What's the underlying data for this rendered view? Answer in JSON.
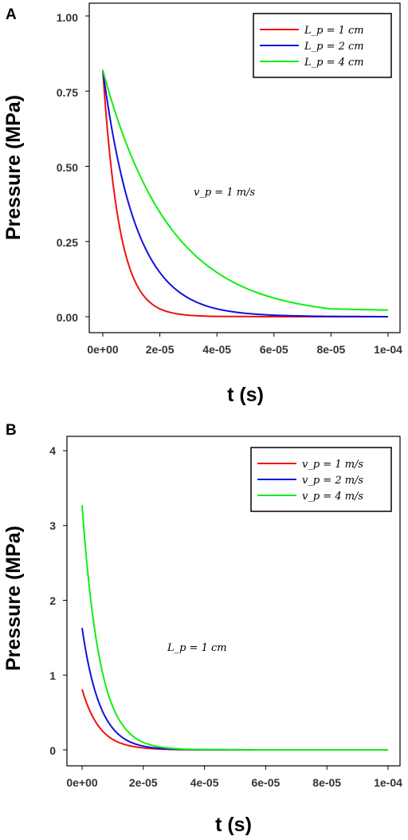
{
  "chart_data": [
    {
      "type": "line",
      "panel_label": "A",
      "xlabel": "t (s)",
      "ylabel": "Pressure (MPa)",
      "xlim": [
        0,
        0.0001
      ],
      "ylim": [
        0,
        1.0
      ],
      "xticks": [
        "0e+00",
        "2e-05",
        "4e-05",
        "6e-05",
        "8e-05",
        "1e-04"
      ],
      "yticks": [
        "0.00",
        "0.25",
        "0.50",
        "0.75",
        "1.00"
      ],
      "ytick_values": [
        0,
        0.25,
        0.5,
        0.75,
        1.0
      ],
      "legend_position": "top-right",
      "annotation": "v_p = 1 m/s",
      "series": [
        {
          "name": "L_p = 1 cm",
          "color": "#ee1111",
          "x": [
            0,
            5e-06,
            1e-05,
            1.5e-05,
            2e-05,
            3e-05,
            4e-05,
            6e-05,
            8e-05,
            0.0001
          ],
          "y": [
            0.82,
            0.347,
            0.147,
            0.062,
            0.026,
            0.005,
            0.001,
            0,
            0,
            0
          ]
        },
        {
          "name": "L_p = 2 cm",
          "color": "#1111dd",
          "x": [
            0,
            5e-06,
            1e-05,
            1.5e-05,
            2e-05,
            3e-05,
            4e-05,
            6e-05,
            8e-05,
            0.0001
          ],
          "y": [
            0.82,
            0.534,
            0.347,
            0.226,
            0.147,
            0.062,
            0.026,
            0.005,
            0.001,
            0
          ]
        },
        {
          "name": "L_p = 4 cm",
          "color": "#11ee11",
          "x": [
            0,
            5e-06,
            1e-05,
            1.5e-05,
            2e-05,
            3e-05,
            4e-05,
            6e-05,
            8e-05,
            0.0001
          ],
          "y": [
            0.82,
            0.661,
            0.534,
            0.431,
            0.347,
            0.226,
            0.147,
            0.062,
            0.026,
            0.022
          ]
        }
      ]
    },
    {
      "type": "line",
      "panel_label": "B",
      "xlabel": "t (s)",
      "ylabel": "Pressure (MPa)",
      "xlim": [
        0,
        0.0001
      ],
      "ylim": [
        0,
        4
      ],
      "xticks": [
        "0e+00",
        "2e-05",
        "4e-05",
        "6e-05",
        "8e-05",
        "1e-04"
      ],
      "yticks": [
        "0",
        "1",
        "2",
        "3",
        "4"
      ],
      "ytick_values": [
        0,
        1,
        2,
        3,
        4
      ],
      "legend_position": "top-right",
      "annotation": "L_p = 1 cm",
      "series": [
        {
          "name": "v_p = 1 m/s",
          "color": "#ee1111",
          "x": [
            0,
            5e-06,
            1e-05,
            1.5e-05,
            2e-05,
            3e-05,
            4e-05,
            6e-05,
            8e-05,
            0.0001
          ],
          "y": [
            0.81,
            0.34,
            0.14,
            0.06,
            0.026,
            0.005,
            0.001,
            0,
            0,
            0
          ]
        },
        {
          "name": "v_p = 2 m/s",
          "color": "#1111dd",
          "x": [
            0,
            5e-06,
            1e-05,
            1.5e-05,
            2e-05,
            3e-05,
            4e-05,
            6e-05,
            8e-05,
            0.0001
          ],
          "y": [
            1.63,
            0.69,
            0.29,
            0.12,
            0.05,
            0.009,
            0.002,
            0,
            0,
            0
          ]
        },
        {
          "name": "v_p = 4 m/s",
          "color": "#11ee11",
          "x": [
            0,
            5e-06,
            1e-05,
            1.5e-05,
            2e-05,
            3e-05,
            4e-05,
            6e-05,
            8e-05,
            0.0001
          ],
          "y": [
            3.27,
            1.38,
            0.58,
            0.245,
            0.1,
            0.018,
            0.003,
            0,
            0,
            0
          ]
        }
      ]
    }
  ]
}
